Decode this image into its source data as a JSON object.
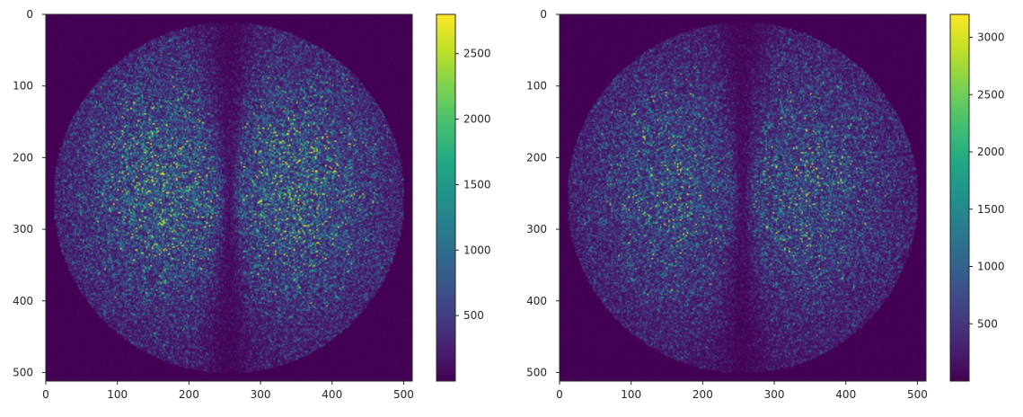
{
  "chart_data": [
    {
      "type": "heatmap",
      "panel": "left",
      "image_size": [
        512,
        512
      ],
      "x_range": [
        0,
        512
      ],
      "y_range": [
        0,
        512
      ],
      "y_inverted": true,
      "xticks": [
        0,
        100,
        200,
        300,
        400,
        500
      ],
      "yticks": [
        0,
        100,
        200,
        300,
        400,
        500
      ],
      "colormap": "viridis",
      "colorbar": {
        "min": 0,
        "max": 2800,
        "ticks": [
          500,
          1000,
          1500,
          2000,
          2500
        ]
      },
      "description_data": {
        "disk_center": [
          256,
          256
        ],
        "disk_radius": 245,
        "center_dark_band_x": 256,
        "lobe_peak_x": [
          165,
          345
        ],
        "lobe_peak_y": 240,
        "background_value": 10,
        "disk_edge_value": 180,
        "peak_mean_value": 900
      }
    },
    {
      "type": "heatmap",
      "panel": "right",
      "image_size": [
        512,
        512
      ],
      "x_range": [
        0,
        512
      ],
      "y_range": [
        0,
        512
      ],
      "y_inverted": true,
      "xticks": [
        0,
        100,
        200,
        300,
        400,
        500
      ],
      "yticks": [
        0,
        100,
        200,
        300,
        400,
        500
      ],
      "colormap": "viridis",
      "colorbar": {
        "min": 0,
        "max": 3200,
        "ticks": [
          500,
          1000,
          1500,
          2000,
          2500,
          3000
        ]
      },
      "description_data": {
        "disk_center": [
          256,
          256
        ],
        "disk_radius": 245,
        "center_dark_band_x": 256,
        "lobe_peak_x": [
          160,
          345
        ],
        "lobe_peak_y": 240,
        "background_value": 10,
        "disk_edge_value": 200,
        "peak_mean_value": 820
      }
    }
  ],
  "colors": {
    "viridis_low": "#440154",
    "viridis_mid": "#21918c",
    "viridis_high": "#fde725",
    "axis_line": "#262626",
    "tick_text": "#262626"
  }
}
